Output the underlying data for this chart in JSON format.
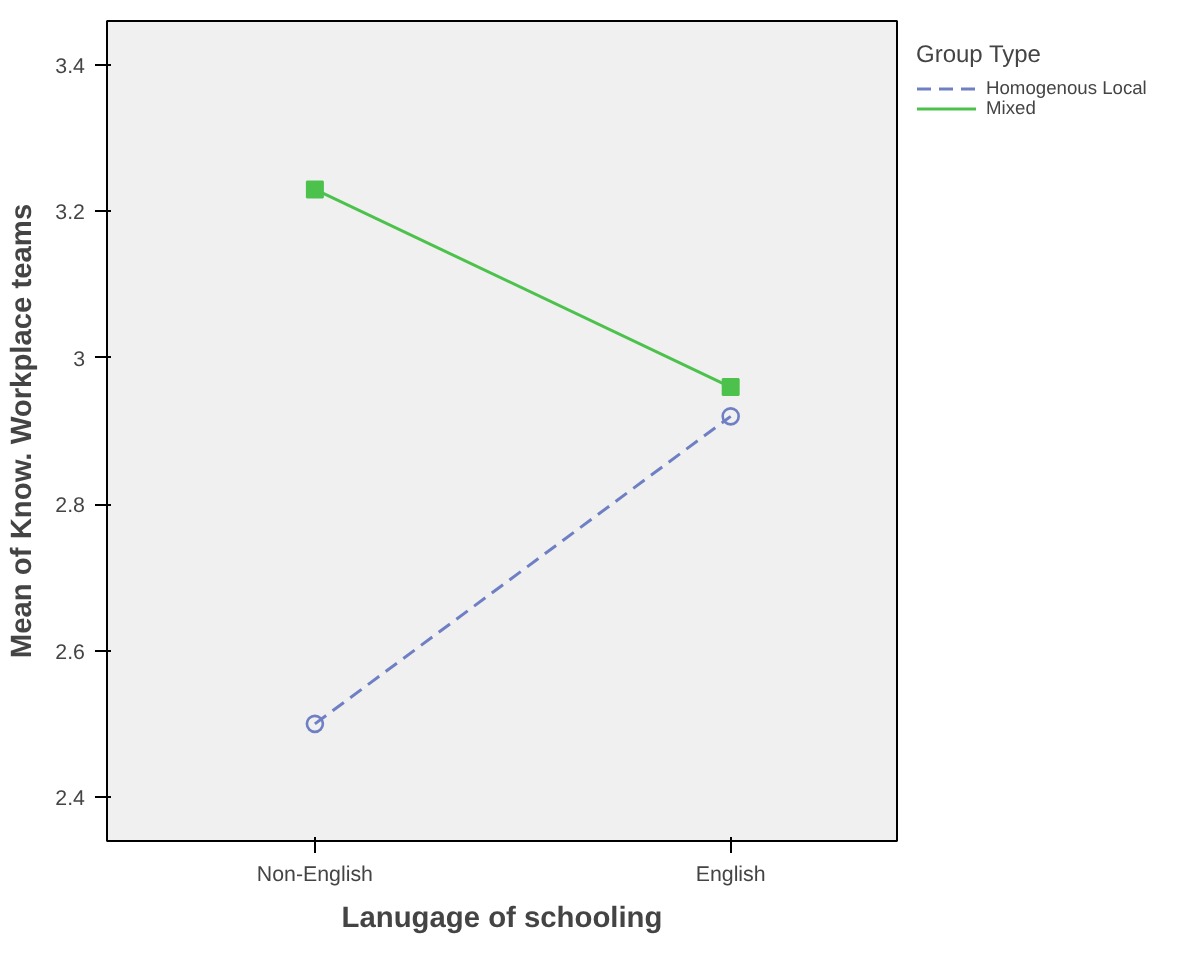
{
  "chart_data": {
    "type": "line",
    "xlabel": "Lanugage of schooling",
    "ylabel": "Mean of Know. Workplace teams",
    "legend_title": "Group Type",
    "legend": "top right",
    "grid": false,
    "categories": [
      "Non-English",
      "English"
    ],
    "ylim": [
      2.34,
      3.46
    ],
    "yticks": [
      {
        "value": 2.4,
        "label": "2.4"
      },
      {
        "value": 2.6,
        "label": "2.6"
      },
      {
        "value": 2.8,
        "label": "2.8"
      },
      {
        "value": 3,
        "label": "3"
      },
      {
        "value": 3.2,
        "label": "3.2"
      },
      {
        "value": 3.4,
        "label": "3.4"
      }
    ],
    "series": [
      {
        "name": "Homogenous Local",
        "color": "#6f7fc4",
        "values": [
          2.5,
          2.92
        ],
        "marker": "circle",
        "line_style": "dashed"
      },
      {
        "name": "Mixed",
        "color": "#4cc24c",
        "values": [
          3.23,
          2.96
        ],
        "marker": "square",
        "line_style": "solid"
      }
    ]
  }
}
